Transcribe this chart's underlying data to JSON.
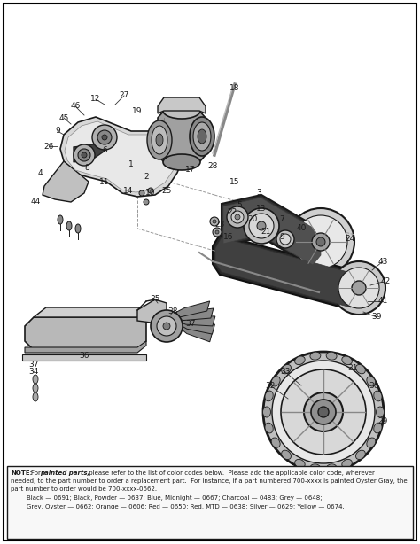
{
  "fig_width": 4.74,
  "fig_height": 6.14,
  "dpi": 100,
  "bg": "#ffffff",
  "line_color": "#1a1a1a",
  "gray_fill": "#c8c8c8",
  "dark_fill": "#555555",
  "mid_fill": "#909090",
  "light_fill": "#e0e0e0",
  "note_bg": "#f5f5f5",
  "note_text_1": "NOTE: For painted parts, please refer to the list of color codes below.  Please add the applicable color code, wherever",
  "note_text_2": "needed, to the part number to order a replacement part.  For instance, if a part numbered 700-xxxx is painted Oyster Gray, the",
  "note_text_3": "part number to order would be 700-xxxx-0662.",
  "note_text_4": "        Black — 0691; Black, Powder — 0637; Blue, Midnight — 0667; Charcoal — 0483; Grey — 0648;",
  "note_text_5": "        Grey, Oyster — 0662; Orange — 0606; Red — 0650; Red, MTD — 0638; Silver — 0629; Yellow — 0674.",
  "note_bold_1": "NOTE:",
  "note_bold_2": "painted parts,"
}
